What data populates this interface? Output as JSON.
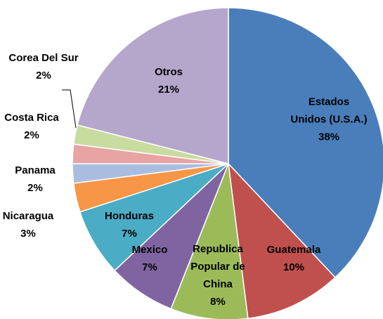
{
  "chart_data": {
    "type": "pie",
    "categories": [
      "Estados Unidos (U.S.A.)",
      "Guatemala",
      "Republica Popular de China",
      "Mexico",
      "Honduras",
      "Nicaragua",
      "Panama",
      "Costa Rica",
      "Corea Del Sur",
      "Otros"
    ],
    "values": [
      38,
      10,
      8,
      7,
      7,
      3,
      2,
      2,
      2,
      21
    ],
    "value_labels": [
      "38%",
      "10%",
      "8%",
      "7%",
      "7%",
      "3%",
      "2%",
      "2%",
      "2%",
      "21%"
    ],
    "colors": [
      "#4a7ebb",
      "#c0504d",
      "#9bbb59",
      "#8064a2",
      "#4bacc6",
      "#f79646",
      "#a9bde0",
      "#e8a3a3",
      "#c9dca0",
      "#b5a6cc"
    ]
  }
}
